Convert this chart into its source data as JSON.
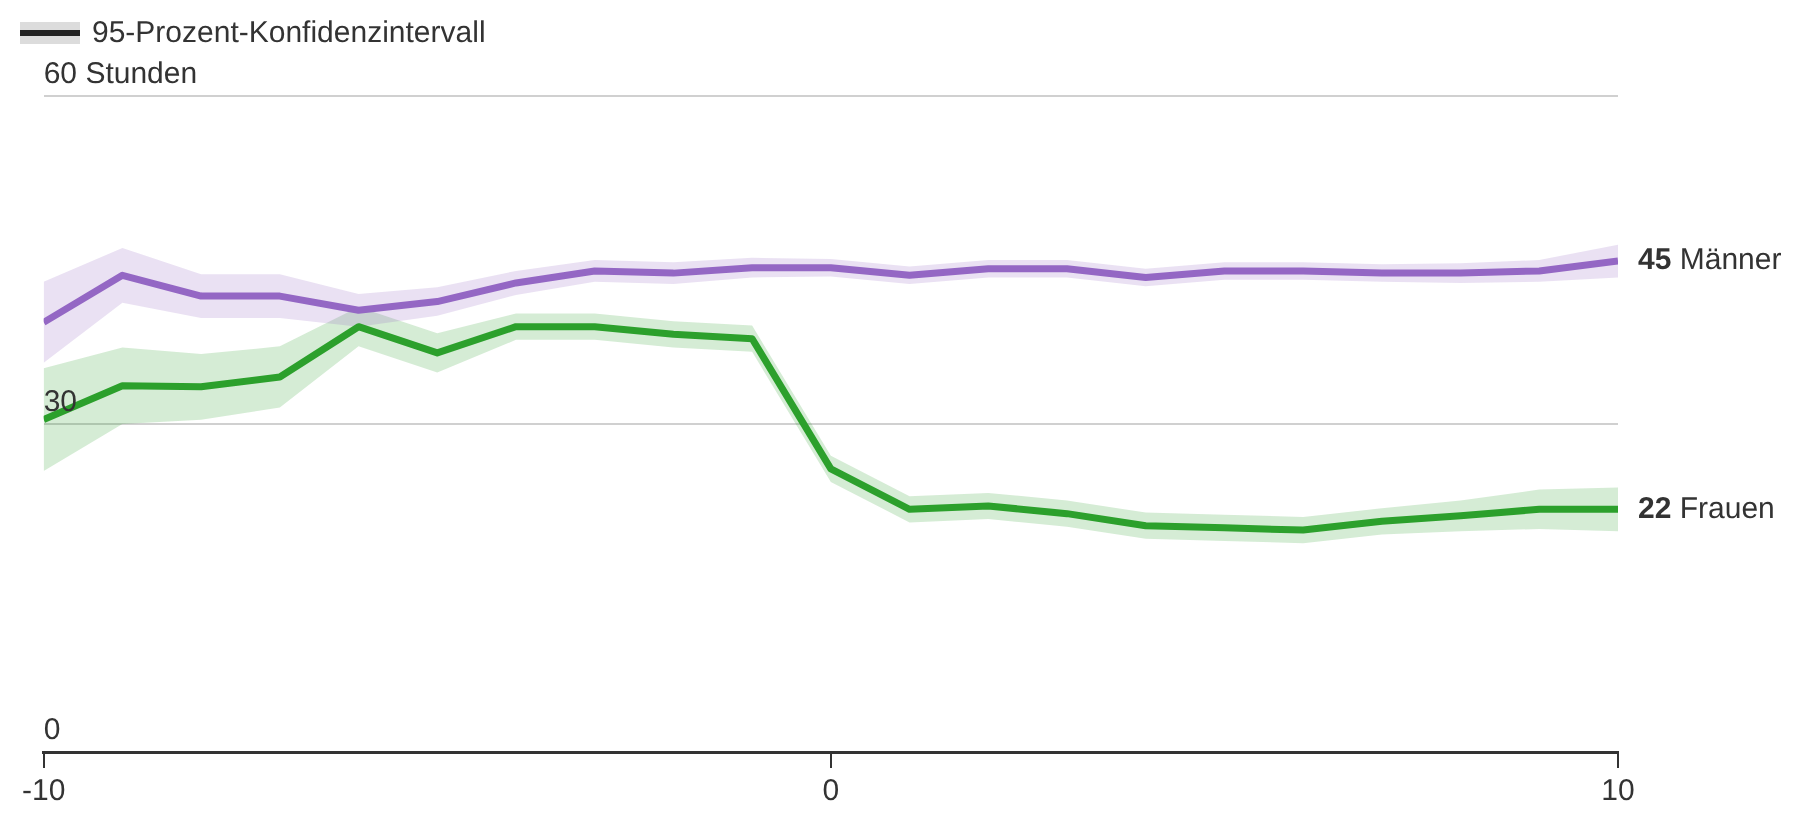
{
  "chart_data": {
    "type": "line",
    "x": [
      -10,
      -9,
      -8,
      -7,
      -6,
      -5,
      -4,
      -3,
      -2,
      -1,
      0,
      1,
      2,
      3,
      4,
      5,
      6,
      7,
      8,
      9,
      10
    ],
    "series": [
      {
        "name": "Männer",
        "color": "#9467c4",
        "values": [
          39.3,
          43.6,
          41.7,
          41.7,
          40.4,
          41.2,
          42.9,
          44.0,
          43.8,
          44.3,
          44.3,
          43.6,
          44.2,
          44.2,
          43.4,
          44.0,
          44.0,
          43.8,
          43.8,
          44.0,
          44.9
        ],
        "lower": [
          35.6,
          41.1,
          39.7,
          39.7,
          38.9,
          39.9,
          41.8,
          43.0,
          42.8,
          43.4,
          43.5,
          42.8,
          43.4,
          43.4,
          42.6,
          43.2,
          43.2,
          43.0,
          42.9,
          43.0,
          43.4
        ],
        "upper": [
          43.0,
          46.1,
          43.7,
          43.7,
          41.9,
          42.5,
          44.0,
          45.0,
          44.8,
          45.2,
          45.1,
          44.4,
          45.0,
          45.0,
          44.2,
          44.8,
          44.8,
          44.6,
          44.7,
          45.0,
          46.4
        ],
        "value_labels": [
          null,
          null,
          null,
          null,
          null,
          null,
          null,
          null,
          null,
          null,
          null,
          null,
          null,
          null,
          null,
          null,
          null,
          null,
          null,
          null,
          "45"
        ]
      },
      {
        "name": "Frauen",
        "color": "#2ca02c",
        "values": [
          30.4,
          33.5,
          33.4,
          34.3,
          38.9,
          36.5,
          38.9,
          38.9,
          38.2,
          37.8,
          25.9,
          22.2,
          22.5,
          21.8,
          20.7,
          20.5,
          20.3,
          21.1,
          21.6,
          22.2,
          22.2
        ],
        "lower": [
          25.7,
          30.0,
          30.4,
          31.5,
          37.1,
          34.7,
          37.7,
          37.7,
          37.0,
          36.6,
          24.7,
          21.0,
          21.3,
          20.6,
          19.5,
          19.3,
          19.1,
          19.9,
          20.2,
          20.4,
          20.2
        ],
        "upper": [
          35.1,
          37.0,
          36.4,
          37.1,
          40.7,
          38.3,
          40.1,
          40.1,
          39.4,
          39.0,
          27.1,
          23.4,
          23.7,
          23.0,
          21.9,
          21.7,
          21.5,
          22.3,
          23.0,
          24.0,
          24.2
        ],
        "value_labels": [
          null,
          null,
          null,
          null,
          null,
          null,
          null,
          null,
          null,
          null,
          null,
          null,
          null,
          null,
          null,
          null,
          null,
          null,
          null,
          null,
          "22"
        ]
      }
    ],
    "xlim": [
      -10,
      10
    ],
    "xticks": [
      -10,
      0,
      10
    ],
    "ylim": [
      0,
      60
    ],
    "yticks": [
      0,
      30,
      {
        "value": 60,
        "label": "60 Stunden"
      }
    ],
    "grid": "y",
    "marker": "none",
    "line_style": "solid",
    "annotations": [
      "95-Prozent-Konfidenzintervall"
    ]
  }
}
